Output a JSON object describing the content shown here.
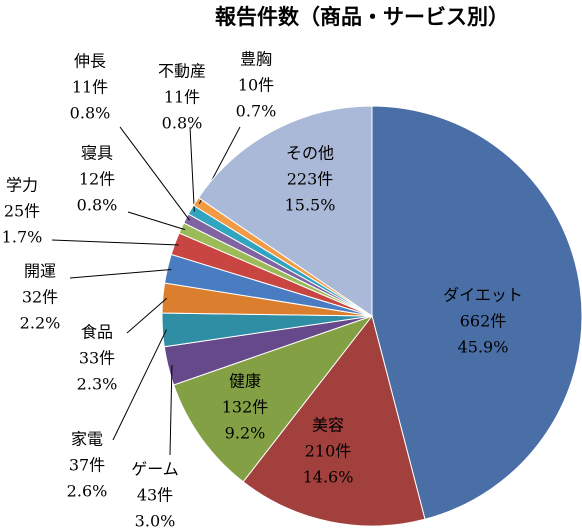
{
  "chart_data": {
    "type": "pie",
    "title": "報告件数（商品・サービス別）",
    "categories": [
      "ダイエット",
      "美容",
      "健康",
      "ゲーム",
      "家電",
      "食品",
      "開運",
      "学力",
      "寝具",
      "伸長",
      "不動産",
      "豊胸",
      "その他"
    ],
    "values": [
      662,
      210,
      132,
      43,
      37,
      33,
      32,
      25,
      12,
      11,
      11,
      10,
      223
    ],
    "value_labels": [
      "662件",
      "210件",
      "132件",
      "43件",
      "37件",
      "33件",
      "32件",
      "25件",
      "12件",
      "11件",
      "11件",
      "10件",
      "223件"
    ],
    "percent_labels": [
      "45.9%",
      "14.6%",
      "9.2%",
      "3.0%",
      "2.6%",
      "2.3%",
      "2.2%",
      "1.7%",
      "0.8%",
      "0.8%",
      "0.8%",
      "0.7%",
      "15.5%"
    ],
    "colors": [
      "#4a6ea6",
      "#a2403d",
      "#83a045",
      "#65498a",
      "#2f8ea3",
      "#db7f2f",
      "#4a7cc2",
      "#c94541",
      "#9bbb59",
      "#8064a2",
      "#31a5c0",
      "#f39a45",
      "#abb9d9"
    ]
  }
}
